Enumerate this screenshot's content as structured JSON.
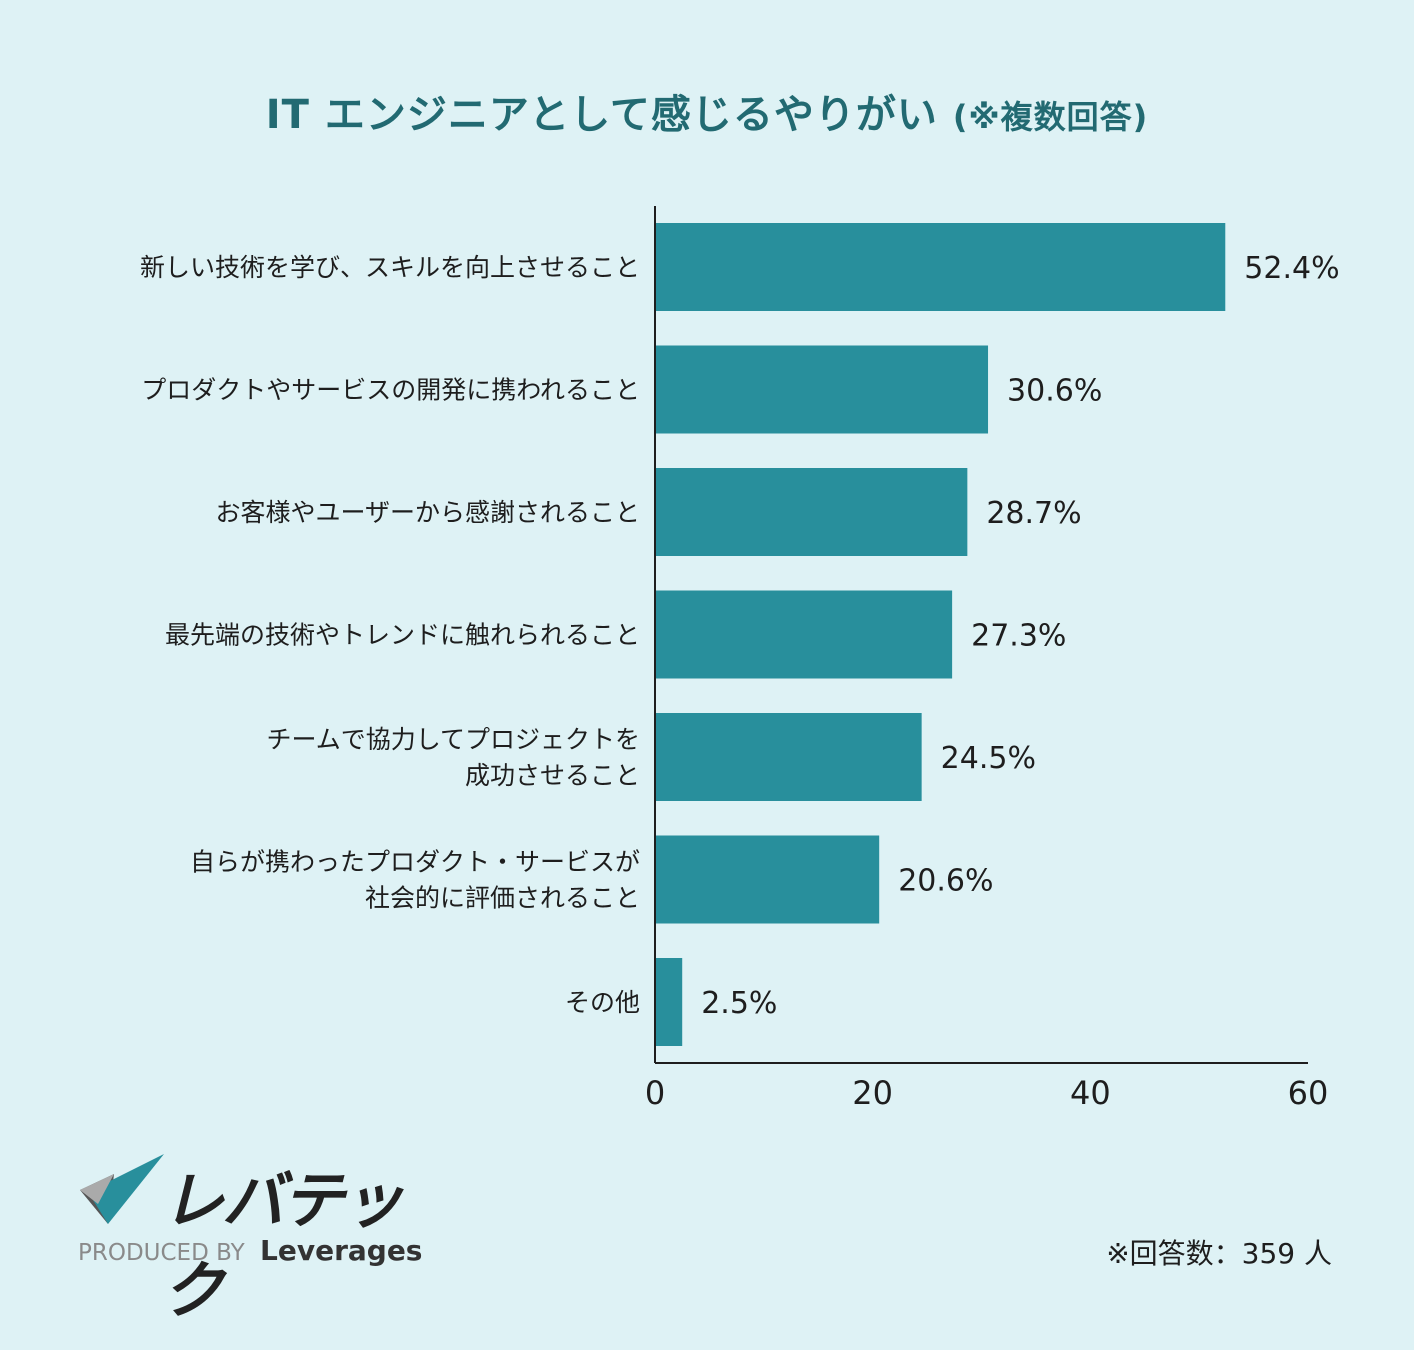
{
  "title": {
    "main": "IT エンジニアとして感じるやりがい",
    "sub": "(※複数回答)"
  },
  "colors": {
    "background": "#def2f5",
    "bar": "#288f9c",
    "title": "#226a72"
  },
  "chart_data": {
    "type": "bar",
    "orientation": "horizontal",
    "title": "IT エンジニアとして感じるやりがい (※複数回答)",
    "categories": [
      [
        "新しい技術を学び、スキルを向上させること"
      ],
      [
        "プロダクトやサービスの開発に携われること"
      ],
      [
        "お客様やユーザーから感謝されること"
      ],
      [
        "最先端の技術やトレンドに触れられること"
      ],
      [
        "チームで協力してプロジェクトを",
        "成功させること"
      ],
      [
        "自らが携わったプロダクト・サービスが",
        "社会的に評価されること"
      ],
      [
        "その他"
      ]
    ],
    "values": [
      52.4,
      30.6,
      28.7,
      27.3,
      24.5,
      20.6,
      2.5
    ],
    "value_labels": [
      "52.4%",
      "30.6%",
      "28.7%",
      "27.3%",
      "24.5%",
      "20.6%",
      "2.5%"
    ],
    "xlim": [
      0,
      60
    ],
    "xticks": [
      0,
      20,
      40,
      60
    ],
    "xlabel": "",
    "ylabel": "",
    "grid": false,
    "legend": "none"
  },
  "logo": {
    "name": "レバテック",
    "produced_by": "PRODUCED BY",
    "brand": "Leverages"
  },
  "footnote": "※回答数：359 人"
}
